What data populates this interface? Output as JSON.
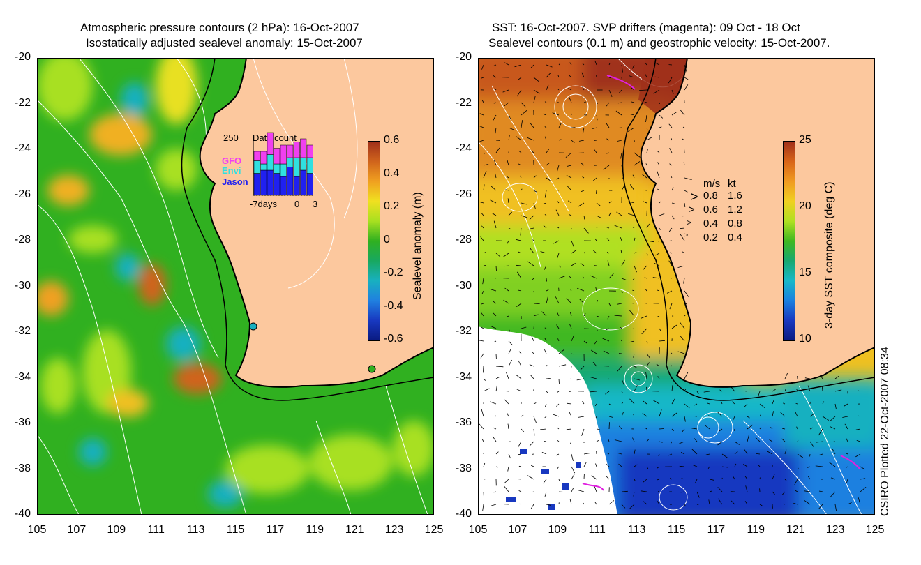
{
  "left_panel": {
    "title_line1": "Atmospheric pressure contours (2 hPa): 16-Oct-2007",
    "title_line2": "Isostatically adjusted sealevel anomaly: 15-Oct-2007",
    "colorbar": {
      "label": "Sealevel anomaly (m)",
      "ticks": [
        "0.6",
        "0.4",
        "0.2",
        "0",
        "-0.2",
        "-0.4",
        "-0.6"
      ],
      "colors": [
        "#a0301a",
        "#d0641c",
        "#f0a020",
        "#f0e020",
        "#a8e020",
        "#30b020",
        "#18a860",
        "#18b0c0",
        "#2080e0",
        "#1838c0",
        "#0a1a80"
      ]
    },
    "inset": {
      "title": "Data count",
      "max_label": "250",
      "legend": [
        "GFO",
        "Envi",
        "Jason"
      ],
      "legend_colors": [
        "#f040f0",
        "#30e0e0",
        "#2020f0"
      ],
      "x_labels": [
        "-7days",
        "0",
        "3"
      ]
    }
  },
  "right_panel": {
    "title_line1": "SST: 16-Oct-2007. SVP drifters (magenta): 09 Oct - 18 Oct",
    "title_line2": "Sealevel contours (0.1 m) and geostrophic velocity: 15-Oct-2007.",
    "colorbar": {
      "label": "3-day SST composite (deg C)",
      "ticks": [
        "25",
        "20",
        "15",
        "10"
      ],
      "colors": [
        "#a0301a",
        "#d86418",
        "#f09a20",
        "#f0d020",
        "#b0e020",
        "#40b820",
        "#18a870",
        "#18b8c8",
        "#1a80e0",
        "#1838c0",
        "#0a1a80"
      ]
    },
    "velocity_legend": {
      "header_ms": "m/s",
      "header_kt": "kt",
      "rows": [
        {
          "ms": "0.8",
          "kt": "1.6"
        },
        {
          "ms": "0.6",
          "kt": "1.2"
        },
        {
          "ms": "0.4",
          "kt": "0.8"
        },
        {
          "ms": "0.2",
          "kt": "0.4"
        }
      ]
    }
  },
  "axes": {
    "y_ticks": [
      "-20",
      "-22",
      "-24",
      "-26",
      "-28",
      "-30",
      "-32",
      "-34",
      "-36",
      "-38",
      "-40"
    ],
    "x_ticks": [
      "105",
      "107",
      "109",
      "111",
      "113",
      "115",
      "117",
      "119",
      "121",
      "123",
      "125"
    ]
  },
  "credit": "CSIRO Plotted 22-Oct-2007 08:34",
  "colors": {
    "land": "#fcc89e",
    "ocean_green": "#30b020",
    "coast": "#000000",
    "drifter": "#e020e0"
  }
}
